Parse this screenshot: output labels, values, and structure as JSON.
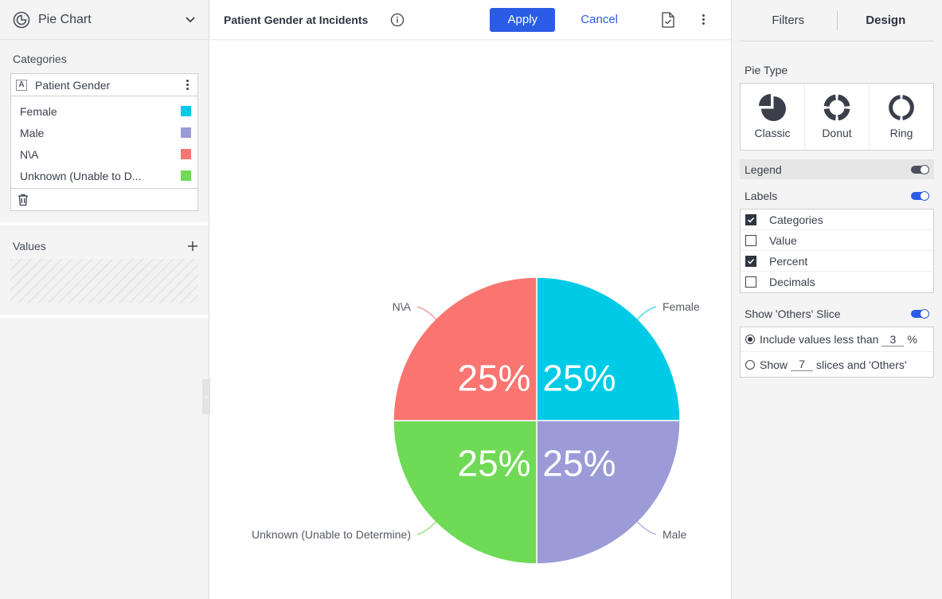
{
  "left_panel": {
    "chart_type": {
      "label": "Pie Chart",
      "icon": "pie-chart-icon"
    },
    "categories": {
      "title": "Categories",
      "field": {
        "badge": "A",
        "name": "Patient Gender"
      },
      "items": [
        {
          "name": "Female",
          "color": "#00cbe6"
        },
        {
          "name": "Male",
          "color": "#9b9bd7"
        },
        {
          "name": "N\\A",
          "color": "#fa7470"
        },
        {
          "name": "Unknown (Unable to D...",
          "color": "#6fda55"
        }
      ]
    },
    "values": {
      "title": "Values"
    }
  },
  "toolbar": {
    "title": "Patient Gender at Incidents",
    "apply_label": "Apply",
    "cancel_label": "Cancel"
  },
  "chart_data": {
    "type": "pie",
    "categories": [
      "Female",
      "Male",
      "Unknown (Unable to Determine)",
      "N\\A"
    ],
    "values": [
      25,
      25,
      25,
      25
    ],
    "percent_labels": [
      "25%",
      "25%",
      "25%",
      "25%"
    ],
    "colors": [
      "#00cbe6",
      "#9b9bd7",
      "#6fda55",
      "#fa7470"
    ],
    "title": "",
    "legend": false
  },
  "right_panel": {
    "tabs": [
      {
        "label": "Filters",
        "active": false
      },
      {
        "label": "Design",
        "active": true
      }
    ],
    "pie_type": {
      "title": "Pie Type",
      "options": [
        {
          "label": "Classic",
          "icon": "classic-pie-icon"
        },
        {
          "label": "Donut",
          "icon": "donut-icon"
        },
        {
          "label": "Ring",
          "icon": "ring-icon"
        }
      ]
    },
    "legend": {
      "label": "Legend",
      "enabled": false
    },
    "labels": {
      "label": "Labels",
      "enabled": true,
      "options": [
        {
          "label": "Categories",
          "checked": true
        },
        {
          "label": "Value",
          "checked": false
        },
        {
          "label": "Percent",
          "checked": true
        },
        {
          "label": "Decimals",
          "checked": false
        }
      ]
    },
    "others_slice": {
      "label": "Show 'Others' Slice",
      "enabled": true,
      "include_prefix": "Include values less than",
      "include_value": "3",
      "include_suffix": "%",
      "show_prefix": "Show",
      "show_value": "7",
      "show_suffix": "slices and 'Others'",
      "selected": "include"
    }
  }
}
